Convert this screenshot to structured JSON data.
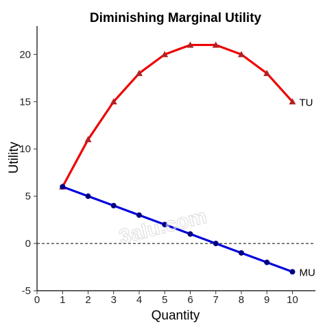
{
  "chart_data": {
    "type": "line",
    "title": "Diminishing Marginal Utility",
    "xlabel": "Quantity",
    "ylabel": "Utility",
    "xlim": [
      0,
      10.9
    ],
    "ylim": [
      -5,
      23
    ],
    "x_ticks": [
      0,
      1,
      2,
      3,
      4,
      5,
      6,
      7,
      8,
      9,
      10
    ],
    "y_ticks": [
      -5,
      0,
      5,
      10,
      15,
      20
    ],
    "x": [
      1,
      2,
      3,
      4,
      5,
      6,
      7,
      8,
      9,
      10
    ],
    "series": [
      {
        "name": "TU",
        "color": "#ee0000",
        "marker_color": "#b22222",
        "marker": "triangle",
        "values": [
          6,
          11,
          15,
          18,
          20,
          21,
          21,
          20,
          18,
          15
        ]
      },
      {
        "name": "MU",
        "color": "#0000dd",
        "marker_color": "#000080",
        "marker": "circle",
        "values": [
          6,
          5,
          4,
          3,
          2,
          1,
          0,
          -1,
          -2,
          -3
        ]
      }
    ],
    "reference_line": {
      "y": 0,
      "style": "dashed"
    },
    "grid": false,
    "legend": "none"
  },
  "watermark": "3aIu.com"
}
